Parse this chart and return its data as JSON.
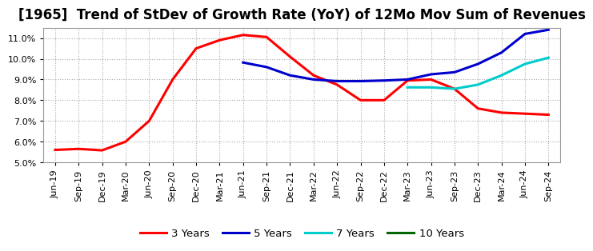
{
  "title": "[1965]  Trend of StDev of Growth Rate (YoY) of 12Mo Mov Sum of Revenues",
  "ylim": [
    0.05,
    0.115
  ],
  "yticks": [
    0.05,
    0.06,
    0.07,
    0.08,
    0.09,
    0.1,
    0.11
  ],
  "background_color": "#ffffff",
  "grid_color": "#aaaaaa",
  "xtick_labels": [
    "Jun-19",
    "Sep-19",
    "Dec-19",
    "Mar-20",
    "Jun-20",
    "Sep-20",
    "Dec-20",
    "Mar-21",
    "Jun-21",
    "Sep-21",
    "Dec-21",
    "Mar-22",
    "Jun-22",
    "Sep-22",
    "Dec-22",
    "Mar-23",
    "Jun-23",
    "Sep-23",
    "Dec-23",
    "Mar-24",
    "Jun-24",
    "Sep-24"
  ],
  "series": [
    {
      "label": "3 Years",
      "color": "#ff0000",
      "linewidth": 2.2,
      "x_indices": [
        0,
        1,
        2,
        3,
        4,
        5,
        6,
        7,
        8,
        9,
        10,
        11,
        12,
        13,
        14,
        15,
        16,
        17,
        18,
        19,
        20,
        21
      ],
      "values": [
        0.056,
        0.0565,
        0.0558,
        0.06,
        0.07,
        0.09,
        0.105,
        0.109,
        0.1115,
        0.1105,
        0.101,
        0.092,
        0.0875,
        0.08,
        0.08,
        0.0895,
        0.09,
        0.0855,
        0.076,
        0.074,
        0.0735,
        0.073
      ]
    },
    {
      "label": "5 Years",
      "color": "#0000cc",
      "linewidth": 2.2,
      "x_indices": [
        8,
        9,
        10,
        11,
        12,
        13,
        14,
        15,
        16,
        17,
        18,
        19,
        20,
        21
      ],
      "values": [
        0.0982,
        0.096,
        0.092,
        0.09,
        0.0892,
        0.0892,
        0.0895,
        0.09,
        0.0925,
        0.0935,
        0.0975,
        0.103,
        0.112,
        0.114
      ]
    },
    {
      "label": "7 Years",
      "color": "#00cccc",
      "linewidth": 2.2,
      "x_indices": [
        15,
        16,
        17,
        18,
        19,
        20,
        21
      ],
      "values": [
        0.0862,
        0.0862,
        0.0855,
        0.0875,
        0.092,
        0.0975,
        0.1005
      ]
    },
    {
      "label": "10 Years",
      "color": "#006600",
      "linewidth": 2.2,
      "x_indices": [],
      "values": []
    }
  ],
  "title_fontsize": 12,
  "tick_fontsize": 8.0,
  "legend_fontsize": 9.5
}
